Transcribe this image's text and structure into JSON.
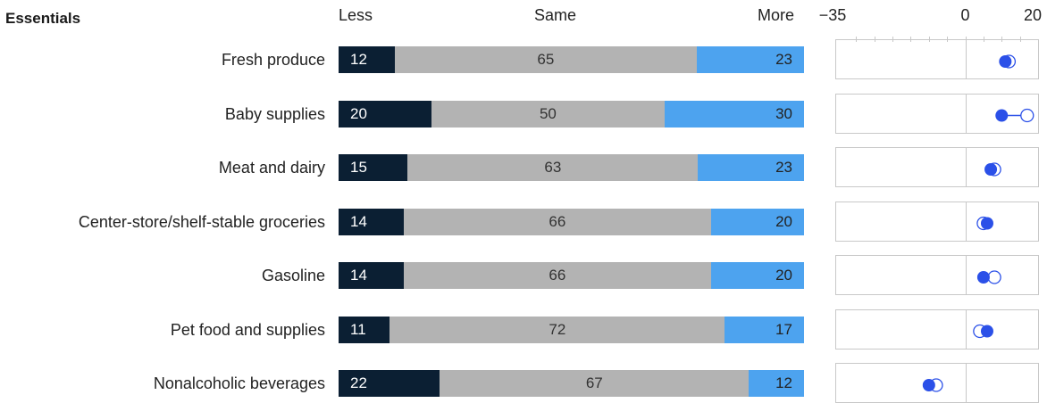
{
  "section_title": "Essentials",
  "headers": {
    "less": "Less",
    "same": "Same",
    "more": "More"
  },
  "colors": {
    "less": "#0b1f33",
    "same": "#b3b3b3",
    "more": "#4da3ef",
    "dot": "#2b50e8"
  },
  "chart_data": [
    {
      "type": "bar",
      "stacked": true,
      "categories": [
        "Fresh produce",
        "Baby supplies",
        "Meat and dairy",
        "Center-store/shelf-stable groceries",
        "Gasoline",
        "Pet food and supplies",
        "Nonalcoholic beverages"
      ],
      "series": [
        {
          "name": "Less",
          "values": [
            12,
            20,
            15,
            14,
            14,
            11,
            22
          ]
        },
        {
          "name": "Same",
          "values": [
            65,
            50,
            63,
            66,
            66,
            72,
            67
          ]
        },
        {
          "name": "More",
          "values": [
            23,
            30,
            23,
            20,
            20,
            17,
            12
          ]
        }
      ]
    },
    {
      "type": "scatter",
      "categories": [
        "Fresh produce",
        "Baby supplies",
        "Meat and dairy",
        "Center-store/shelf-stable groceries",
        "Gasoline",
        "Pet food and supplies",
        "Nonalcoholic beverages"
      ],
      "xlim": [
        -35,
        20
      ],
      "ticks": [
        "−35",
        "0",
        "20"
      ],
      "series": [
        {
          "values": [
            11,
            10,
            7,
            6,
            5,
            6,
            -10
          ],
          "style": "filled"
        },
        {
          "values": [
            12,
            17,
            8,
            5,
            8,
            4,
            -8
          ],
          "style": "open"
        }
      ]
    }
  ]
}
